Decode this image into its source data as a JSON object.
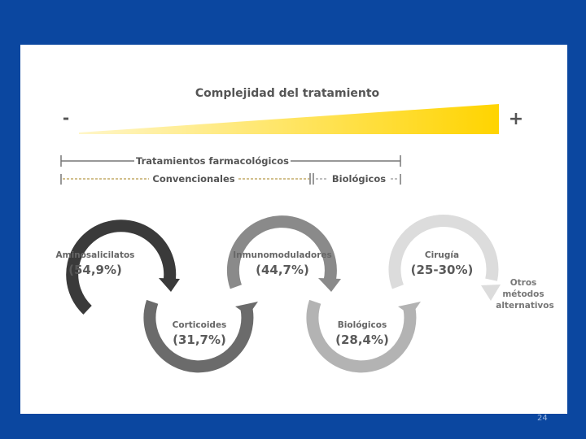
{
  "colors": {
    "background": "#0b47a0",
    "gradient_start": "#fff6c8",
    "gradient_end": "#ffd400",
    "step_1": "#3a3a3a",
    "step_2": "#6b6b6b",
    "step_3": "#8a8a8a",
    "step_4": "#b3b3b3",
    "step_5": "#dcdcdc"
  },
  "title": "Complejidad del tratamiento",
  "scale": {
    "minus": "-",
    "plus": "+"
  },
  "brackets": {
    "farmacologicos": "Tratamientos farmacológicos",
    "convencionales": "Convencionales",
    "biologicos": "Biológicos"
  },
  "steps": [
    {
      "name": "Aminosalicilatos",
      "pct": "(54,9%)"
    },
    {
      "name": "Corticoides",
      "pct": "(31,7%)"
    },
    {
      "name": "Inmunomoduladores",
      "pct": "(44,7%)"
    },
    {
      "name": "Biológicos",
      "pct": "(28,4%)"
    },
    {
      "name": "Cirugía",
      "pct": "(25-30%)"
    }
  ],
  "otros": [
    "Otros",
    "métodos",
    "alternativos"
  ],
  "page_number": "24"
}
